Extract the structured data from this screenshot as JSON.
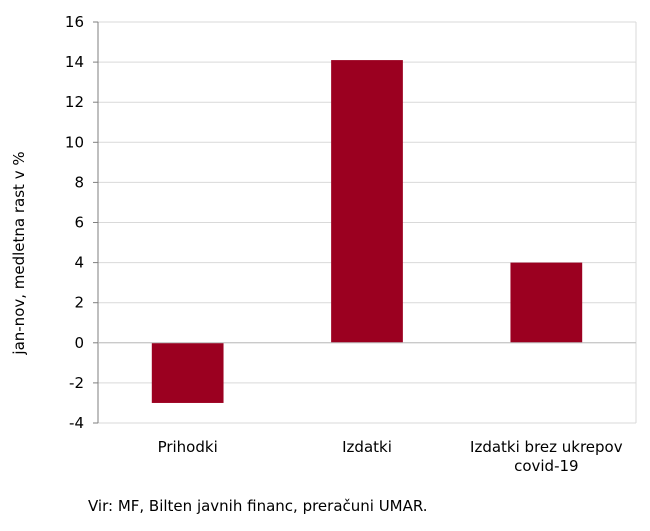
{
  "chart_data": {
    "type": "bar",
    "categories": [
      [
        "Prihodki"
      ],
      [
        "Izdatki"
      ],
      [
        "Izdatki brez ukrepov",
        "covid-19"
      ]
    ],
    "values": [
      -3.0,
      14.1,
      4.0
    ],
    "ylabel": "jan-nov, medletna rast v %",
    "ylim": [
      -4,
      16
    ],
    "yticks": [
      -4,
      -2,
      0,
      2,
      4,
      6,
      8,
      10,
      12,
      14,
      16
    ],
    "grid": true,
    "bar_color": "#9b0020",
    "grid_color": "#d9d9d9"
  },
  "source": "Vir: MF, Bilten javnih financ, preračuni UMAR."
}
